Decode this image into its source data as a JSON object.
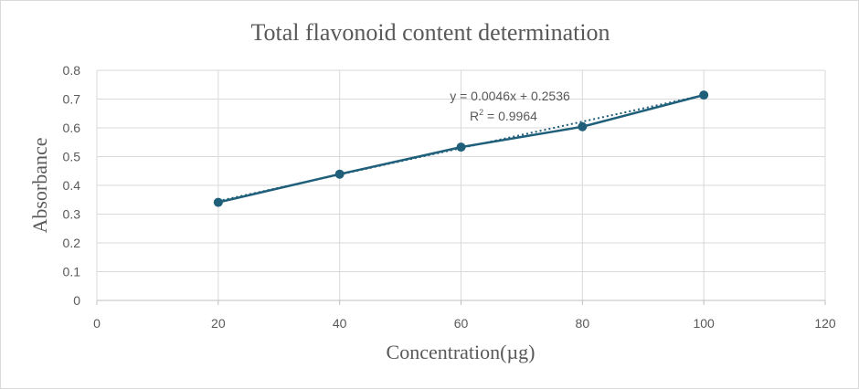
{
  "chart_data": {
    "type": "scatter",
    "title": "Total flavonoid content determination",
    "xlabel": "Concentration(µg)",
    "ylabel": "Absorbance",
    "xlim": [
      0,
      120
    ],
    "ylim": [
      0,
      0.8
    ],
    "x_ticks": [
      0,
      20,
      40,
      60,
      80,
      100,
      120
    ],
    "y_ticks": [
      0,
      0.1,
      0.2,
      0.3,
      0.4,
      0.5,
      0.6,
      0.7,
      0.8
    ],
    "grid": true,
    "legend": "none",
    "series": [
      {
        "x": [
          20,
          40,
          60,
          80,
          100
        ],
        "y": [
          0.341,
          0.439,
          0.533,
          0.604,
          0.714
        ],
        "color": "#1f5f7a",
        "style": "line-with-markers"
      }
    ],
    "trendline": {
      "type": "linear",
      "slope": 0.0046,
      "intercept": 0.2536,
      "x_range": [
        20,
        100
      ],
      "color": "#1f5f7a",
      "style": "dotted"
    },
    "annotations": {
      "equation": "y = 0.0046x + 0.2536",
      "r_squared_label": "R",
      "r_squared_exponent": "2",
      "r_squared_value": " = 0.9964"
    }
  }
}
